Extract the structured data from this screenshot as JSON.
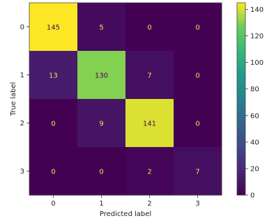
{
  "chart_data": {
    "type": "heatmap",
    "title": "",
    "xlabel": "Predicted label",
    "ylabel": "True label",
    "x_categories": [
      "0",
      "1",
      "2",
      "3"
    ],
    "y_categories": [
      "0",
      "1",
      "2",
      "3"
    ],
    "matrix": [
      [
        145,
        5,
        0,
        0
      ],
      [
        13,
        130,
        7,
        0
      ],
      [
        0,
        9,
        141,
        0
      ],
      [
        0,
        0,
        2,
        7
      ]
    ],
    "colormap": "viridis",
    "colorbar": {
      "range": [
        0,
        145
      ],
      "ticks": [
        "0",
        "20",
        "40",
        "60",
        "80",
        "100",
        "120",
        "140"
      ],
      "tick_values": [
        0,
        20,
        40,
        60,
        80,
        100,
        120,
        140
      ]
    },
    "text_colors": {
      "on_dark": "#f5e24b",
      "on_light": "#440154"
    },
    "grid": false
  }
}
